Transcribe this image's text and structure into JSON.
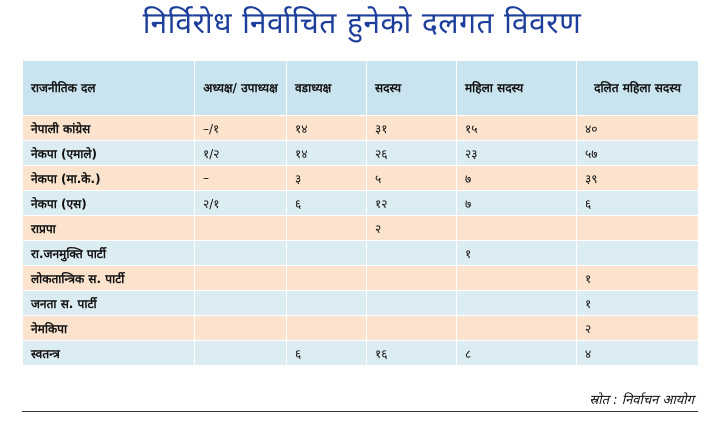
{
  "title": "निर्विरोध निर्वाचित हुनेको दलगत विवरण",
  "table": {
    "headers": [
      "राजनीतिक दल",
      "अध्यक्ष/ उपाध्यक्ष",
      "वडाध्यक्ष",
      "सदस्य",
      "महिला सदस्य",
      "दलित महिला सदस्य"
    ],
    "rows": [
      [
        "नेपाली कांग्रेस",
        "–/१",
        "१४",
        "३१",
        "१५",
        "४०"
      ],
      [
        "नेकपा (एमाले)",
        "१/२",
        "१४",
        "२६",
        "२३",
        "५७"
      ],
      [
        "नेकपा (मा.के.)",
        "–",
        "३",
        "५",
        "७",
        "३९"
      ],
      [
        "नेकपा (एस)",
        "२/१",
        "६",
        "१२",
        "७",
        "६"
      ],
      [
        "राप्रपा",
        "",
        "",
        "२",
        "",
        ""
      ],
      [
        "रा.जनमुक्ति पार्टी",
        "",
        "",
        "",
        "१",
        ""
      ],
      [
        "लोकतान्त्रिक स. पार्टी",
        "",
        "",
        "",
        "",
        "१"
      ],
      [
        "जनता स. पार्टी",
        "",
        "",
        "",
        "",
        "१"
      ],
      [
        "नेमकिपा",
        "",
        "",
        "",
        "",
        "२"
      ],
      [
        "स्वतन्त्र",
        "",
        "६",
        "१६",
        "८",
        "४"
      ]
    ]
  },
  "source": "स्रोत : निर्वाचन आयोग",
  "colors": {
    "title": "#1d3f9b",
    "header_bg": "#c9e4ef",
    "row_peach": "#fbe3cd",
    "row_blue": "#dcecf3"
  }
}
